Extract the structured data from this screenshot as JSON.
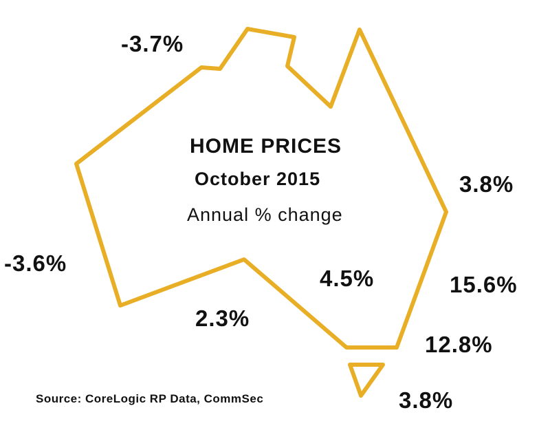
{
  "title": "HOME PRICES",
  "period": "October 2015",
  "measure": "Annual % change",
  "source": "Source: CoreLogic RP Data, CommSec",
  "colors": {
    "outline": "#E8AE25",
    "text": "#111111"
  },
  "regions": {
    "nt": {
      "value": "-3.7%"
    },
    "wa": {
      "value": "-3.6%"
    },
    "sa": {
      "value": "2.3%"
    },
    "qld": {
      "value": "3.8%"
    },
    "regional_centre": {
      "value": "4.5%"
    },
    "nsw": {
      "value": "15.6%"
    },
    "vic": {
      "value": "12.8%"
    },
    "tas": {
      "value": "3.8%"
    }
  }
}
